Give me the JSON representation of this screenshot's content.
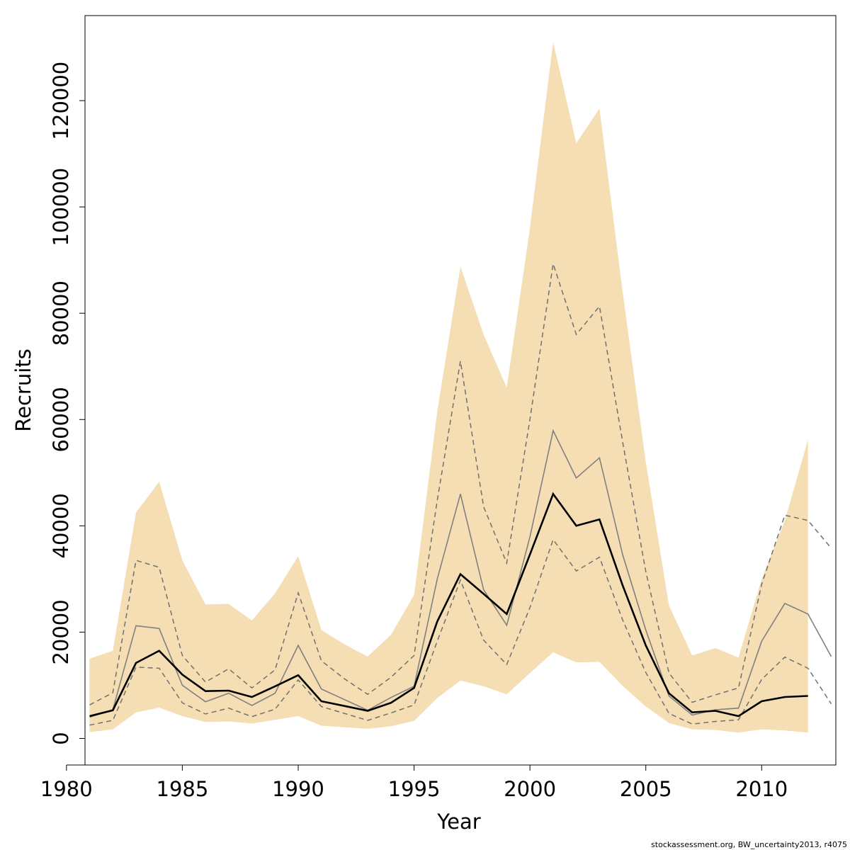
{
  "chart_data": {
    "type": "area",
    "xlabel": "Year",
    "ylabel": "Recruits",
    "xlim": [
      1980.8,
      2013.2
    ],
    "ylim": [
      -5000,
      136000
    ],
    "x_ticks": [
      1980,
      1985,
      1990,
      1995,
      2000,
      2005,
      2010
    ],
    "y_ticks": [
      0,
      20000,
      40000,
      60000,
      80000,
      100000,
      120000
    ],
    "grid": false,
    "colors": {
      "band": "#f5deb3",
      "median": "#000000",
      "quantile": "#808080",
      "dashed": "#707070"
    },
    "band": {
      "x": [
        1981,
        1982,
        1983,
        1984,
        1985,
        1986,
        1987,
        1988,
        1989,
        1990,
        1991,
        1992,
        1993,
        1994,
        1995,
        1996,
        1997,
        1998,
        1999,
        2000,
        2001,
        2002,
        2003,
        2004,
        2005,
        2006,
        2007,
        2008,
        2009,
        2010,
        2011,
        2012
      ],
      "upper": [
        15000,
        16500,
        42500,
        48300,
        33500,
        25200,
        25300,
        22200,
        27300,
        34300,
        20400,
        17700,
        15400,
        19500,
        27000,
        61500,
        88800,
        76000,
        66000,
        96000,
        131000,
        112000,
        118500,
        84000,
        52000,
        25000,
        15600,
        17000,
        15200,
        30000,
        41000,
        56200
      ],
      "lower": [
        1200,
        1700,
        4900,
        5800,
        4200,
        3100,
        3200,
        2800,
        3500,
        4200,
        2400,
        2100,
        1800,
        2300,
        3300,
        7600,
        10900,
        9800,
        8300,
        12300,
        16200,
        14300,
        14400,
        9900,
        6000,
        2900,
        1700,
        1600,
        1100,
        1700,
        1500,
        1100
      ]
    },
    "series": [
      {
        "style": "median",
        "x": [
          1981,
          1982,
          1983,
          1984,
          1985,
          1986,
          1987,
          1988,
          1989,
          1990,
          1991,
          1992,
          1993,
          1994,
          1995,
          1996,
          1997,
          1998,
          1999,
          2000,
          2001,
          2002,
          2003,
          2004,
          2005,
          2006,
          2007,
          2008,
          2009,
          2010,
          2011,
          2012
        ],
        "values": [
          4200,
          5300,
          14200,
          16500,
          12000,
          8900,
          9000,
          7800,
          9800,
          11900,
          7000,
          6100,
          5200,
          6700,
          9500,
          22000,
          30900,
          27200,
          23400,
          34600,
          46000,
          40000,
          41200,
          28800,
          17500,
          8500,
          4900,
          5200,
          4200,
          7000,
          7800,
          8000
        ]
      },
      {
        "style": "quantile",
        "x": [
          1981,
          1982,
          1983,
          1984,
          1985,
          1986,
          1987,
          1988,
          1989,
          1990,
          1991,
          1992,
          1993,
          1994,
          1995,
          1996,
          1997,
          1998,
          1999,
          2000,
          2001,
          2002,
          2003,
          2004,
          2005,
          2006,
          2007,
          2008,
          2009,
          2010,
          2011,
          2012,
          2013
        ],
        "values": [
          4000,
          5400,
          21200,
          20700,
          10000,
          6900,
          8500,
          6200,
          8500,
          17500,
          9300,
          7300,
          5300,
          7700,
          9800,
          30000,
          46000,
          28000,
          21300,
          37900,
          57900,
          49000,
          52800,
          34600,
          20400,
          8000,
          4400,
          5400,
          5700,
          18300,
          25400,
          23400,
          15400
        ]
      },
      {
        "style": "dashed",
        "x": [
          1981,
          1982,
          1983,
          1984,
          1985,
          1986,
          1987,
          1988,
          1989,
          1990,
          1991,
          1992,
          1993,
          1994,
          1995,
          1996,
          1997,
          1998,
          1999,
          2000,
          2001,
          2002,
          2003,
          2004,
          2005,
          2006,
          2007,
          2008,
          2009,
          2010,
          2011,
          2012,
          2013
        ],
        "values": [
          6300,
          8600,
          33500,
          32200,
          15600,
          10600,
          13100,
          9500,
          12900,
          27400,
          14600,
          11200,
          8300,
          11500,
          15600,
          44800,
          71000,
          43600,
          33000,
          60000,
          89300,
          76000,
          81300,
          55800,
          31400,
          12300,
          6800,
          8200,
          9500,
          29000,
          42000,
          41000,
          35800
        ]
      },
      {
        "style": "dashed",
        "x": [
          1981,
          1982,
          1983,
          1984,
          1985,
          1986,
          1987,
          1988,
          1989,
          1990,
          1991,
          1992,
          1993,
          1994,
          1995,
          1996,
          1997,
          1998,
          1999,
          2000,
          2001,
          2002,
          2003,
          2004,
          2005,
          2006,
          2007,
          2008,
          2009,
          2010,
          2011,
          2012,
          2013
        ],
        "values": [
          2500,
          3400,
          13400,
          13200,
          6700,
          4600,
          5700,
          4100,
          5500,
          11000,
          6000,
          4700,
          3400,
          4800,
          6300,
          18300,
          29800,
          18500,
          13900,
          24600,
          37400,
          31500,
          34100,
          22300,
          12400,
          4700,
          2700,
          3200,
          3500,
          11100,
          15300,
          13200,
          6500
        ]
      }
    ]
  },
  "footnote": "stockassessment.org, BW_uncertainty2013, r4075"
}
